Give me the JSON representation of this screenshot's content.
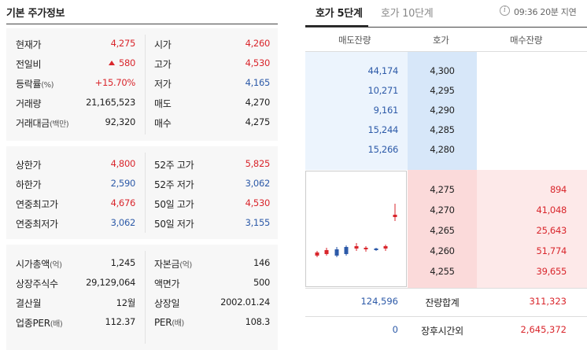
{
  "left": {
    "title": "기본 주가정보",
    "block1": [
      {
        "l1": "현재가",
        "l1_unit": "",
        "v1": "4,275",
        "c1": "red",
        "l2": "시가",
        "l2_unit": "",
        "v2": "4,260",
        "c2": "red"
      },
      {
        "l1": "전일비",
        "l1_unit": "",
        "v1": "580",
        "c1": "red",
        "up": true,
        "l2": "고가",
        "l2_unit": "",
        "v2": "4,530",
        "c2": "red"
      },
      {
        "l1": "등락률",
        "l1_unit": "(%)",
        "v1": "+15.70%",
        "c1": "red",
        "l2": "저가",
        "l2_unit": "",
        "v2": "4,165",
        "c2": "blue"
      },
      {
        "l1": "거래량",
        "l1_unit": "",
        "v1": "21,165,523",
        "c1": "dark",
        "l2": "매도",
        "l2_unit": "",
        "v2": "4,270",
        "c2": "dark"
      },
      {
        "l1": "거래대금",
        "l1_unit": "(백만)",
        "v1": "92,320",
        "c1": "dark",
        "l2": "매수",
        "l2_unit": "",
        "v2": "4,275",
        "c2": "dark"
      }
    ],
    "block2": [
      {
        "l1": "상한가",
        "l1_unit": "",
        "v1": "4,800",
        "c1": "red",
        "l2": "52주 고가",
        "l2_unit": "",
        "v2": "5,825",
        "c2": "red"
      },
      {
        "l1": "하한가",
        "l1_unit": "",
        "v1": "2,590",
        "c1": "blue",
        "l2": "52주 저가",
        "l2_unit": "",
        "v2": "3,062",
        "c2": "blue"
      },
      {
        "l1": "연중최고가",
        "l1_unit": "",
        "v1": "4,676",
        "c1": "red",
        "l2": "50일 고가",
        "l2_unit": "",
        "v2": "4,530",
        "c2": "red"
      },
      {
        "l1": "연중최저가",
        "l1_unit": "",
        "v1": "3,062",
        "c1": "blue",
        "l2": "50일 저가",
        "l2_unit": "",
        "v2": "3,155",
        "c2": "blue"
      }
    ],
    "block3": [
      {
        "l1": "시가총액",
        "l1_unit": "(억)",
        "v1": "1,245",
        "c1": "dark",
        "l2": "자본금",
        "l2_unit": "(억)",
        "v2": "146",
        "c2": "dark"
      },
      {
        "l1": "상장주식수",
        "l1_unit": "",
        "v1": "29,129,064",
        "c1": "dark",
        "l2": "액면가",
        "l2_unit": "",
        "v2": "500",
        "c2": "dark"
      },
      {
        "l1": "결산월",
        "l1_unit": "",
        "v1": "12월",
        "c1": "dark",
        "l2": "상장일",
        "l2_unit": "",
        "v2": "2002.01.24",
        "c2": "dark"
      },
      {
        "l1": "업종PER",
        "l1_unit": "(배)",
        "v1": "112.37",
        "c1": "dark",
        "l2": "PER",
        "l2_unit": "(배)",
        "v2": "108.3",
        "c2": "dark"
      }
    ]
  },
  "orderbook": {
    "tabs": [
      "호가 5단계",
      "호가 10단계"
    ],
    "info_icon": "i",
    "delay_text": "09:36 20분 지연",
    "headers": {
      "ask_volume": "매도잔량",
      "price": "호가",
      "bid_volume": "매수잔량"
    },
    "asks": [
      {
        "volume": "44,174",
        "price": "4,300"
      },
      {
        "volume": "10,271",
        "price": "4,295"
      },
      {
        "volume": "9,161",
        "price": "4,290"
      },
      {
        "volume": "15,244",
        "price": "4,285"
      },
      {
        "volume": "15,266",
        "price": "4,280"
      }
    ],
    "bids": [
      {
        "price": "4,275",
        "volume": "894"
      },
      {
        "price": "4,270",
        "volume": "41,048"
      },
      {
        "price": "4,265",
        "volume": "25,643"
      },
      {
        "price": "4,260",
        "volume": "51,774"
      },
      {
        "price": "4,255",
        "volume": "39,655"
      }
    ],
    "total": {
      "ask": "124,596",
      "label": "잔량합계",
      "bid": "311,323"
    },
    "after_hours": {
      "ask": "0",
      "label": "장후시간외",
      "bid": "2,645,372"
    }
  },
  "colors": {
    "up": "#d9262c",
    "down": "#2d5aa8",
    "ask_bg": "#ecf4fd",
    "bid_bg": "#fde9e9"
  }
}
